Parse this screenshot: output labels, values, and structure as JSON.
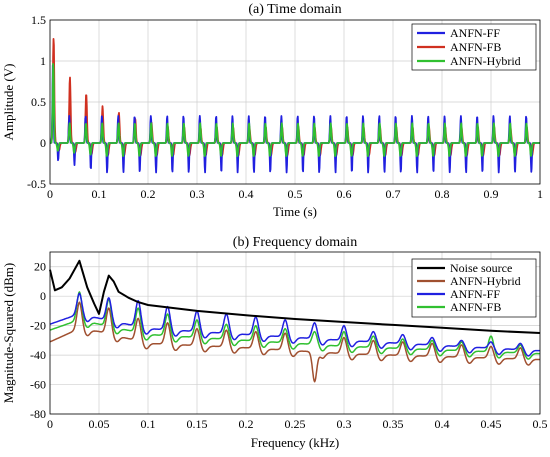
{
  "chart_data": [
    {
      "type": "line",
      "title": "(a) Time domain",
      "xlabel": "Time (s)",
      "ylabel": "Amplitude (V)",
      "xlim": [
        0,
        1
      ],
      "ylim": [
        -0.5,
        1.5
      ],
      "xticks": [
        "0",
        "0.1",
        "0.2",
        "0.3",
        "0.4",
        "0.5",
        "0.6",
        "0.7",
        "0.8",
        "0.9",
        "1"
      ],
      "yticks": [
        "-0.5",
        "0",
        "0.5",
        "1",
        "1.5"
      ],
      "grid": true,
      "legend_position": "top-right",
      "pulse_period_s": 0.0333,
      "series": [
        {
          "name": "ANFN-FF",
          "color": "#2020e0",
          "first_peak": 0.98,
          "peak_steady": 0.33,
          "trough_steady": -0.36
        },
        {
          "name": "ANFN-FB",
          "color": "#d03020",
          "first_peak": 1.28,
          "peak_steady": 0.2,
          "trough_steady": -0.15,
          "decay": [
            1.28,
            0.8,
            0.6,
            0.45,
            0.37,
            0.3,
            0.25
          ]
        },
        {
          "name": "ANFN-Hybrid",
          "color": "#30c030",
          "first_peak": 0.98,
          "peak_steady": 0.24,
          "trough_steady": -0.16
        }
      ]
    },
    {
      "type": "line",
      "title": "(b) Frequency domain",
      "xlabel": "Frequency (kHz)",
      "ylabel": "Magnitude-Squared (dBm)",
      "xlim": [
        0,
        0.5
      ],
      "ylim": [
        -80,
        30
      ],
      "xticks": [
        "0",
        "0.05",
        "0.1",
        "0.15",
        "0.2",
        "0.25",
        "0.3",
        "0.35",
        "0.4",
        "0.45",
        "0.5"
      ],
      "yticks": [
        "-80",
        "-60",
        "-40",
        "-20",
        "0",
        "20"
      ],
      "grid": true,
      "legend_position": "top-right",
      "series": [
        {
          "name": "Noise source",
          "color": "#000000",
          "x": [
            0,
            0.005,
            0.012,
            0.02,
            0.03,
            0.038,
            0.045,
            0.05,
            0.055,
            0.06,
            0.065,
            0.07,
            0.08,
            0.09,
            0.1,
            0.15,
            0.2,
            0.25,
            0.3,
            0.35,
            0.4,
            0.45,
            0.5
          ],
          "y": [
            18,
            4,
            6,
            12,
            24,
            6,
            -5,
            -12,
            3,
            14,
            10,
            3,
            -1,
            -4,
            -6,
            -10,
            -13,
            -15.5,
            -17.5,
            -19.5,
            -21.5,
            -23.5,
            -25
          ]
        },
        {
          "name": "ANFN-Hybrid",
          "color": "#a05030",
          "base": [
            [
              0,
              -31
            ],
            [
              0.03,
              -22
            ],
            [
              0.05,
              -24
            ],
            [
              0.1,
              -32
            ],
            [
              0.2,
              -35
            ],
            [
              0.3,
              -39
            ],
            [
              0.5,
              -43
            ]
          ],
          "peaks": [
            [
              0.03,
              -4
            ],
            [
              0.06,
              -8
            ],
            [
              0.09,
              -15
            ],
            [
              0.12,
              -18
            ],
            [
              0.15,
              -22
            ],
            [
              0.18,
              -23
            ],
            [
              0.21,
              -24
            ],
            [
              0.24,
              -25
            ],
            [
              0.27,
              -58
            ],
            [
              0.3,
              -28
            ],
            [
              0.33,
              -30
            ],
            [
              0.36,
              -31
            ],
            [
              0.39,
              -32
            ],
            [
              0.42,
              -33
            ],
            [
              0.45,
              -34
            ],
            [
              0.48,
              -35
            ]
          ]
        },
        {
          "name": "ANFN-FF",
          "color": "#2020e0",
          "base": [
            [
              0,
              -19
            ],
            [
              0.03,
              -12
            ],
            [
              0.05,
              -15
            ],
            [
              0.1,
              -22
            ],
            [
              0.2,
              -26
            ],
            [
              0.3,
              -30
            ],
            [
              0.5,
              -37
            ]
          ],
          "peaks": [
            [
              0.03,
              2
            ],
            [
              0.06,
              -1
            ],
            [
              0.09,
              -3
            ],
            [
              0.12,
              -7
            ],
            [
              0.15,
              -10
            ],
            [
              0.18,
              -12
            ],
            [
              0.21,
              -14
            ],
            [
              0.24,
              -16
            ],
            [
              0.27,
              -18
            ],
            [
              0.3,
              -20
            ],
            [
              0.33,
              -24
            ],
            [
              0.36,
              -26
            ],
            [
              0.39,
              -28
            ],
            [
              0.42,
              -30
            ],
            [
              0.45,
              -31
            ],
            [
              0.48,
              -32
            ]
          ]
        },
        {
          "name": "ANFN-FB",
          "color": "#30c030",
          "base": [
            [
              0,
              -23
            ],
            [
              0.03,
              -16
            ],
            [
              0.05,
              -19
            ],
            [
              0.1,
              -26
            ],
            [
              0.2,
              -30
            ],
            [
              0.3,
              -34
            ],
            [
              0.5,
              -39
            ]
          ],
          "peaks": [
            [
              0.03,
              3
            ],
            [
              0.06,
              -2
            ],
            [
              0.09,
              -8
            ],
            [
              0.12,
              -12
            ],
            [
              0.15,
              -16
            ],
            [
              0.18,
              -19
            ],
            [
              0.21,
              -20
            ],
            [
              0.24,
              -22
            ],
            [
              0.27,
              -24
            ],
            [
              0.3,
              -24
            ],
            [
              0.33,
              -27
            ],
            [
              0.36,
              -29
            ],
            [
              0.39,
              -30
            ],
            [
              0.42,
              -31
            ],
            [
              0.45,
              -27
            ],
            [
              0.48,
              -33
            ]
          ]
        }
      ]
    }
  ]
}
